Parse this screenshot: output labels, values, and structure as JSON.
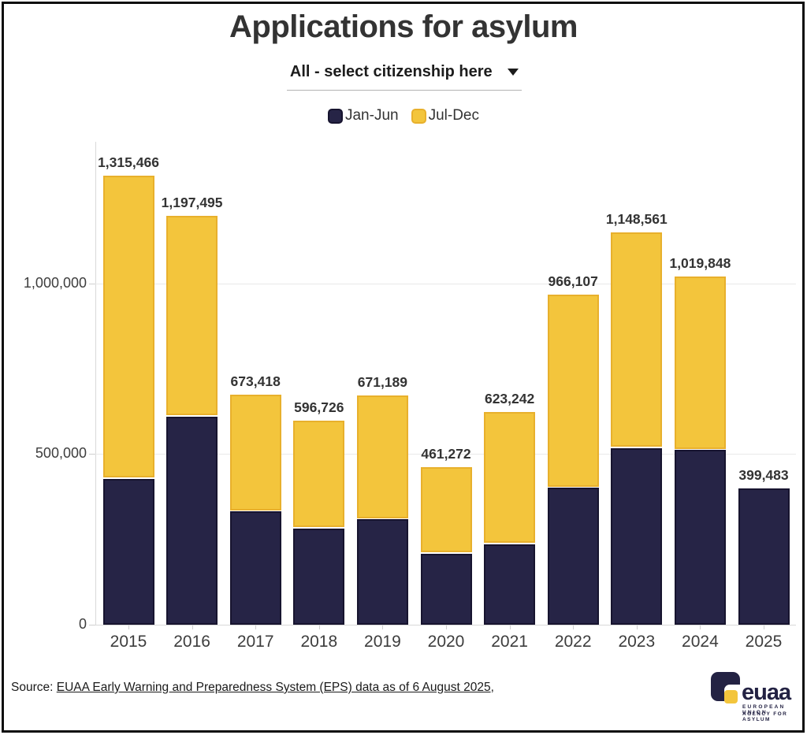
{
  "title": "Applications for asylum",
  "dropdown": {
    "label": "All - select citizenship here"
  },
  "legend": {
    "items": [
      {
        "label": "Jan-Jun",
        "fill": "#262446",
        "border": "#17142F"
      },
      {
        "label": "Jul-Dec",
        "fill": "#F3C53C",
        "border": "#E8B02C"
      }
    ]
  },
  "chart_data": {
    "type": "bar",
    "stacked": true,
    "title": "Applications for asylum",
    "categories": [
      "2015",
      "2016",
      "2017",
      "2018",
      "2019",
      "2020",
      "2021",
      "2022",
      "2023",
      "2024",
      "2025"
    ],
    "series": [
      {
        "name": "Jan-Jun",
        "color": "#262446",
        "border": "#17142F",
        "values": [
          427000,
          609000,
          332000,
          282000,
          309000,
          208000,
          236000,
          401000,
          517000,
          511000,
          399483
        ]
      },
      {
        "name": "Jul-Dec",
        "color": "#F3C53C",
        "border": "#E8B02C",
        "values": [
          888466,
          588495,
          341418,
          314726,
          362189,
          253272,
          387242,
          565107,
          631561,
          508848,
          0
        ]
      }
    ],
    "totals": [
      1315466,
      1197495,
      673418,
      596726,
      671189,
      461272,
      623242,
      966107,
      1148561,
      1019848,
      399483
    ],
    "total_labels": [
      "1,315,466",
      "1,197,495",
      "673,418",
      "596,726",
      "671,189",
      "461,272",
      "623,242",
      "966,107",
      "1,148,561",
      "1,019,848",
      "399,483"
    ],
    "yticks": [
      {
        "value": 0,
        "label": "0"
      },
      {
        "value": 500000,
        "label": "500,000"
      },
      {
        "value": 1000000,
        "label": "1,000,000"
      }
    ],
    "ylim": [
      0,
      1350000
    ],
    "grid": true,
    "legend_position": "top",
    "xlabel": "",
    "ylabel": ""
  },
  "source": {
    "prefix": "Source: ",
    "link_text": "EUAA Early Warning and Preparedness System (EPS) data as of 6 August 2025",
    "suffix": ","
  },
  "logo": {
    "wordmark": "euaa",
    "tagline_line1": "EUROPEAN UNION",
    "tagline_line2": "AGENCY FOR ASYLUM"
  }
}
